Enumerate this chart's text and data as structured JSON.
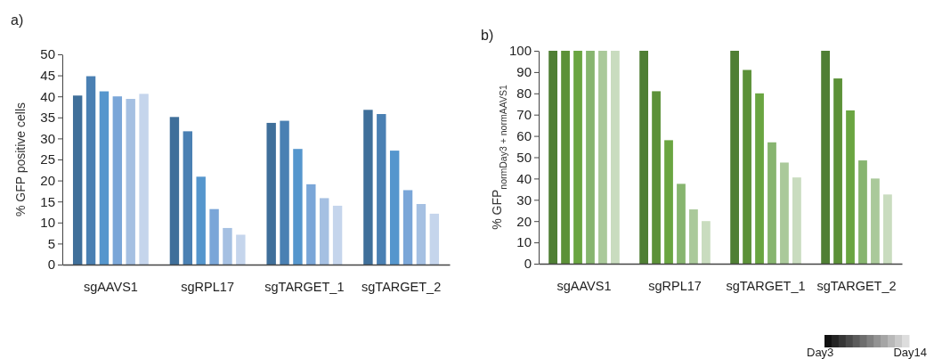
{
  "chart_data": [
    {
      "type": "bar",
      "title": "a)",
      "ylabel": "% GFP positive cells",
      "categories": [
        "sgAAVS1",
        "sgRPL17",
        "sgTARGET_1",
        "sgTARGET_2"
      ],
      "ylim": [
        0,
        50
      ],
      "yticks": [
        0,
        5,
        10,
        15,
        20,
        25,
        30,
        35,
        40,
        45,
        50
      ],
      "grid": false,
      "series": [
        {
          "color": "#3f6f9a",
          "values": [
            40.2,
            35.1,
            33.7,
            36.8
          ]
        },
        {
          "color": "#4a80b3",
          "values": [
            44.8,
            31.7,
            34.2,
            35.8
          ]
        },
        {
          "color": "#5596cd",
          "values": [
            41.2,
            20.9,
            27.5,
            27.1
          ]
        },
        {
          "color": "#7aa6d8",
          "values": [
            40.0,
            13.2,
            19.1,
            17.7
          ]
        },
        {
          "color": "#a5c0e2",
          "values": [
            39.4,
            8.7,
            15.8,
            14.4
          ]
        },
        {
          "color": "#c5d5ec",
          "values": [
            40.6,
            7.1,
            14.0,
            12.1
          ]
        }
      ]
    },
    {
      "type": "bar",
      "title": "b)",
      "ylabel": "% GFP$_{normDay3 + normAAVS1}$",
      "categories": [
        "sgAAVS1",
        "sgRPL17",
        "sgTARGET_1",
        "sgTARGET_2"
      ],
      "ylim": [
        0,
        100
      ],
      "yticks": [
        0,
        10,
        20,
        30,
        40,
        50,
        60,
        70,
        80,
        90,
        100
      ],
      "grid": false,
      "annotations": [
        "Day3",
        "Day14"
      ],
      "series": [
        {
          "color": "#4f7f34",
          "values": [
            100,
            100,
            100,
            100
          ]
        },
        {
          "color": "#5c9138",
          "values": [
            100,
            81,
            91,
            87
          ]
        },
        {
          "color": "#6aa541",
          "values": [
            100,
            58,
            80,
            72
          ]
        },
        {
          "color": "#87b56f",
          "values": [
            100,
            37.5,
            57,
            48.5
          ]
        },
        {
          "color": "#aac99a",
          "values": [
            100,
            25.5,
            47.5,
            40
          ]
        },
        {
          "color": "#c9dcbf",
          "values": [
            100,
            20,
            40.5,
            32.5
          ]
        }
      ]
    }
  ]
}
